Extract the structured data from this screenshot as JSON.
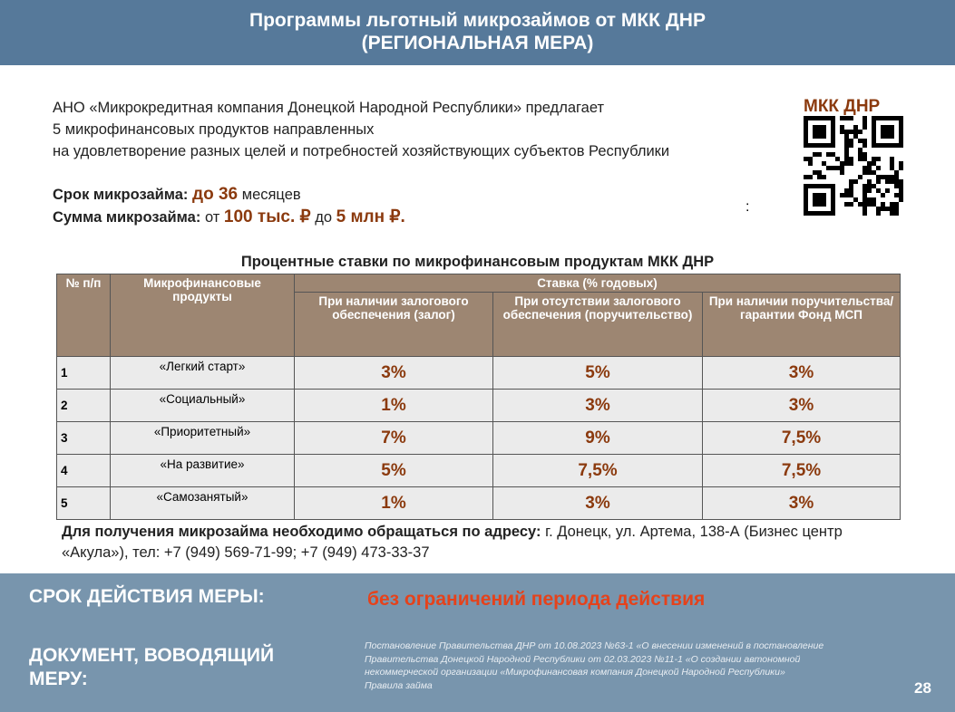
{
  "header": {
    "title_line1": "Программы льготный микрозаймов от МКК ДНР",
    "title_line2": "(РЕГИОНАЛЬНАЯ МЕРА)"
  },
  "intro": [
    "АНО «Микрокредитная компания Донецкой Народной Республики» предлагает",
    "5 микрофинансовых продуктов направленных",
    "на удовлетворение разных целей и потребностей хозяйствующих субъектов Республики"
  ],
  "term": {
    "label": "Срок микрозайма:",
    "value": "до 36",
    "unit": "месяцев"
  },
  "sum": {
    "label": "Сумма микрозайма:",
    "from": "от",
    "min": "100 тыс. ₽",
    "to": "до",
    "max": "5 млн ₽."
  },
  "stray_colon": ":",
  "qr": {
    "label": "МКК ДНР"
  },
  "table": {
    "title": "Процентные ставки по микрофинансовым продуктам МКК ДНР",
    "header": {
      "num": "№ п/п",
      "product": "Микрофинансовые продукты",
      "rate": "Ставка (% годовых)",
      "cols": [
        "При наличии залогового обеспечения (залог)",
        "При отсутствии залогового обеспечения (поручительство)",
        "При наличии поручительства/гарантии Фонд МСП"
      ]
    },
    "rows": [
      [
        "1",
        "«Легкий старт»",
        "3%",
        "5%",
        "3%"
      ],
      [
        "2",
        "«Социальный»",
        "1%",
        "3%",
        "3%"
      ],
      [
        "3",
        "«Приоритетный»",
        "7%",
        "9%",
        "7,5%"
      ],
      [
        "4",
        "«На развитие»",
        "5%",
        "7,5%",
        "7,5%"
      ],
      [
        "5",
        "«Самозанятый»",
        "1%",
        "3%",
        "3%"
      ]
    ]
  },
  "contact": {
    "label": "Для получения микрозайма необходимо обращаться по адресу:",
    "text": "г. Донецк, ул. Артема, 138-А (Бизнес центр «Акула»), тел: +7 (949) 569-71-99; +7 (949) 473-33-37"
  },
  "footer": {
    "period_label": "СРОК ДЕЙСТВИЯ МЕРЫ:",
    "period_value": "без ограничений периода действия",
    "doc_label": "ДОКУМЕНТ, ВОВОДЯЩИЙ МЕРУ:",
    "doc_text": [
      "Постановление Правительства ДНР от 10.08.2023 №63-1 «О внесении изменений в постановление",
      "Правительства Донецкой Народной Республики от 02.03.2023 №11-1 «О создании автономной",
      "некоммерческой организации «Микрофинансовая компания Донецкой Народной Республики»",
      "Правила займа"
    ],
    "page": "28"
  }
}
